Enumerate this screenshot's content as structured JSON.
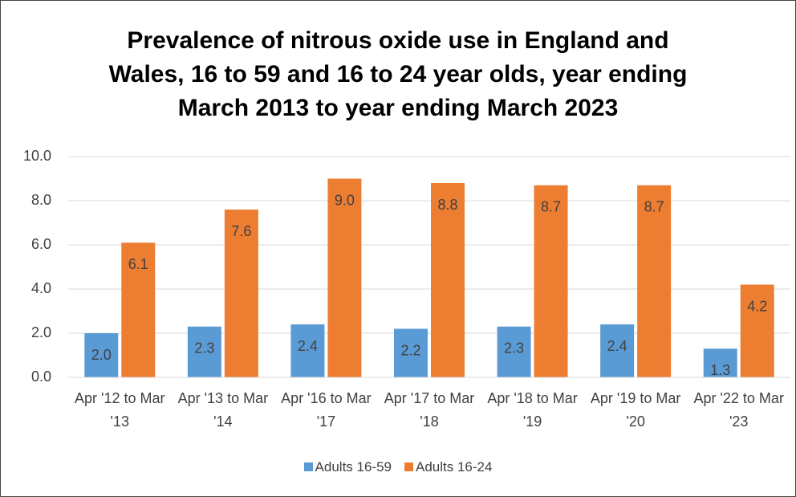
{
  "chart_data": {
    "type": "bar",
    "title": "Prevalence of nitrous oxide use in England and Wales, 16 to 59 and 16 to 24 year olds, year ending March 2013 to year ending March 2023",
    "categories": [
      "Apr '12 to Mar '13",
      "Apr '13 to Mar '14",
      "Apr '16 to Mar '17",
      "Apr '17 to Mar '18",
      "Apr '18 to Mar '19",
      "Apr '19 to Mar '20",
      "Apr '22 to Mar '23"
    ],
    "series": [
      {
        "name": "Adults 16-59",
        "color": "#5b9bd5",
        "values": [
          2.0,
          2.3,
          2.4,
          2.2,
          2.3,
          2.4,
          1.3
        ],
        "value_labels": [
          "2.0",
          "2.3",
          "2.4",
          "2.2",
          "2.3",
          "2.4",
          "1.3"
        ]
      },
      {
        "name": "Adults 16-24",
        "color": "#ed7d31",
        "values": [
          6.1,
          7.6,
          9.0,
          8.8,
          8.7,
          8.7,
          4.2
        ],
        "value_labels": [
          "6.1",
          "7.6",
          "9.0",
          "8.8",
          "8.7",
          "8.7",
          "4.2"
        ]
      }
    ],
    "ylim": [
      0,
      10
    ],
    "yticks": [
      {
        "value": 0,
        "label": "0.0"
      },
      {
        "value": 2,
        "label": "2.0"
      },
      {
        "value": 4,
        "label": "4.0"
      },
      {
        "value": 6,
        "label": "6.0"
      },
      {
        "value": 8,
        "label": "8.0"
      },
      {
        "value": 10,
        "label": "10.0"
      }
    ],
    "grid": true,
    "legend": "bottom"
  }
}
